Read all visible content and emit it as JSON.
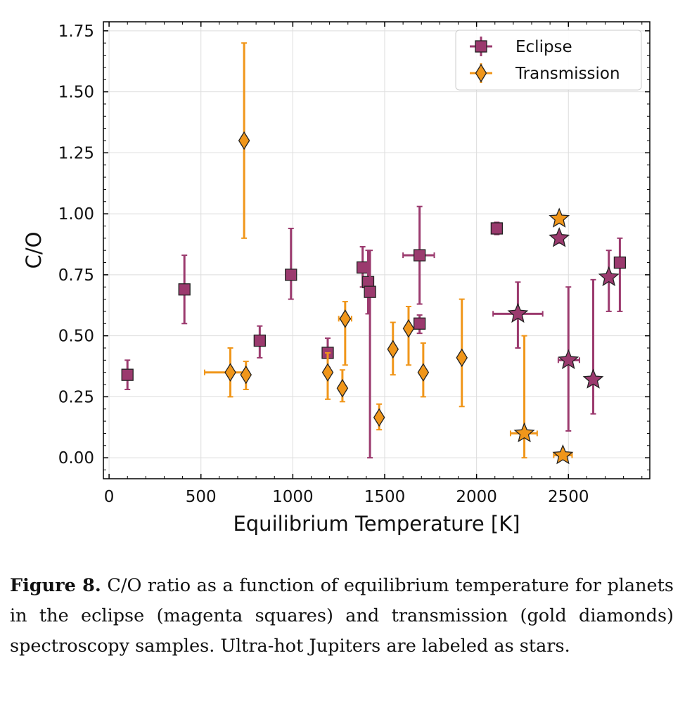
{
  "chart_data": {
    "type": "scatter",
    "xlabel": "Equilibrium Temperature [K]",
    "ylabel": "C/O",
    "xlim": [
      -31,
      2943
    ],
    "ylim": [
      -0.086,
      1.787
    ],
    "xticks": [
      0,
      500,
      1000,
      1500,
      2000,
      2500
    ],
    "xtick_labels": [
      "0",
      "500",
      "1000",
      "1500",
      "2000",
      "2500"
    ],
    "yticks": [
      0,
      0.25,
      0.5,
      0.75,
      1.0,
      1.25,
      1.5,
      1.75
    ],
    "ytick_labels": [
      "0.00",
      "0.25",
      "0.50",
      "0.75",
      "1.00",
      "1.25",
      "1.50",
      "1.75"
    ],
    "grid": true,
    "legend_placement": "top-right",
    "series": [
      {
        "name": "Eclipse",
        "marker": "square",
        "color": "#9b3a6e",
        "points": [
          {
            "x": 100,
            "y": 0.34,
            "ylo": 0.28,
            "yhi": 0.4
          },
          {
            "x": 410,
            "y": 0.69,
            "ylo": 0.55,
            "yhi": 0.83
          },
          {
            "x": 820,
            "y": 0.48,
            "ylo": 0.41,
            "yhi": 0.54
          },
          {
            "x": 990,
            "y": 0.75,
            "ylo": 0.65,
            "yhi": 0.94
          },
          {
            "x": 1190,
            "y": 0.43,
            "ylo": 0.37,
            "yhi": 0.49
          },
          {
            "x": 1380,
            "y": 0.78,
            "ylo": 0.7,
            "yhi": 0.865
          },
          {
            "x": 1410,
            "y": 0.72,
            "ylo": 0.59,
            "yhi": 0.85
          },
          {
            "x": 1420,
            "y": 0.68,
            "ylo": 0.0,
            "yhi": 0.85
          },
          {
            "x": 1690,
            "y": 0.83,
            "ylo": 0.63,
            "yhi": 1.03,
            "xlo": 1600,
            "xhi": 1770
          },
          {
            "x": 1690,
            "y": 0.55,
            "ylo": 0.51,
            "yhi": 0.585
          },
          {
            "x": 2110,
            "y": 0.94,
            "ylo": 0.915,
            "yhi": 0.965
          },
          {
            "x": 2225,
            "y": 0.59,
            "ylo": 0.45,
            "yhi": 0.72,
            "xlo": 2090,
            "xhi": 2360,
            "ultra_hot": true
          },
          {
            "x": 2450,
            "y": 0.9,
            "ylo": 0.88,
            "yhi": 0.915,
            "ultra_hot": true
          },
          {
            "x": 2500,
            "y": 0.4,
            "ylo": 0.11,
            "yhi": 0.7,
            "xlo": 2445,
            "xhi": 2560,
            "ultra_hot": true
          },
          {
            "x": 2635,
            "y": 0.32,
            "ylo": 0.18,
            "yhi": 0.73,
            "ultra_hot": true
          },
          {
            "x": 2720,
            "y": 0.74,
            "ylo": 0.6,
            "yhi": 0.85,
            "ultra_hot": true
          },
          {
            "x": 2780,
            "y": 0.8,
            "ylo": 0.6,
            "yhi": 0.9,
            "xlo": 2755,
            "xhi": 2805
          }
        ]
      },
      {
        "name": "Transmission",
        "marker": "diamond",
        "color": "#f0961a",
        "points": [
          {
            "x": 735,
            "y": 1.3,
            "ylo": 0.9,
            "yhi": 1.7
          },
          {
            "x": 660,
            "y": 0.35,
            "ylo": 0.25,
            "yhi": 0.45,
            "xlo": 520,
            "xhi": 740
          },
          {
            "x": 745,
            "y": 0.34,
            "ylo": 0.28,
            "yhi": 0.395
          },
          {
            "x": 1190,
            "y": 0.35,
            "ylo": 0.24,
            "yhi": 0.43
          },
          {
            "x": 1270,
            "y": 0.285,
            "ylo": 0.23,
            "yhi": 0.36
          },
          {
            "x": 1285,
            "y": 0.57,
            "ylo": 0.38,
            "yhi": 0.64,
            "xlo": 1250,
            "xhi": 1320
          },
          {
            "x": 1470,
            "y": 0.165,
            "ylo": 0.115,
            "yhi": 0.22
          },
          {
            "x": 1545,
            "y": 0.445,
            "ylo": 0.34,
            "yhi": 0.555
          },
          {
            "x": 1630,
            "y": 0.53,
            "ylo": 0.38,
            "yhi": 0.62
          },
          {
            "x": 1710,
            "y": 0.35,
            "ylo": 0.25,
            "yhi": 0.47
          },
          {
            "x": 1920,
            "y": 0.41,
            "ylo": 0.21,
            "yhi": 0.65
          },
          {
            "x": 2260,
            "y": 0.1,
            "ylo": 0.0,
            "yhi": 0.5,
            "xlo": 2185,
            "xhi": 2330,
            "ultra_hot": true
          },
          {
            "x": 2450,
            "y": 0.98,
            "ylo": 0.97,
            "yhi": 0.99,
            "ultra_hot": true
          },
          {
            "x": 2470,
            "y": 0.01,
            "ylo": 0.005,
            "yhi": 0.015,
            "xlo": 2420,
            "xhi": 2520,
            "ultra_hot": true
          }
        ]
      }
    ]
  },
  "caption": {
    "label": "Figure 8.",
    "text": " C/O ratio as a function of equilibrium temperature for planets in the eclipse (magenta squares) and transmission (gold diamonds) spectroscopy samples.  Ultra-hot Jupiters are labeled as stars."
  }
}
